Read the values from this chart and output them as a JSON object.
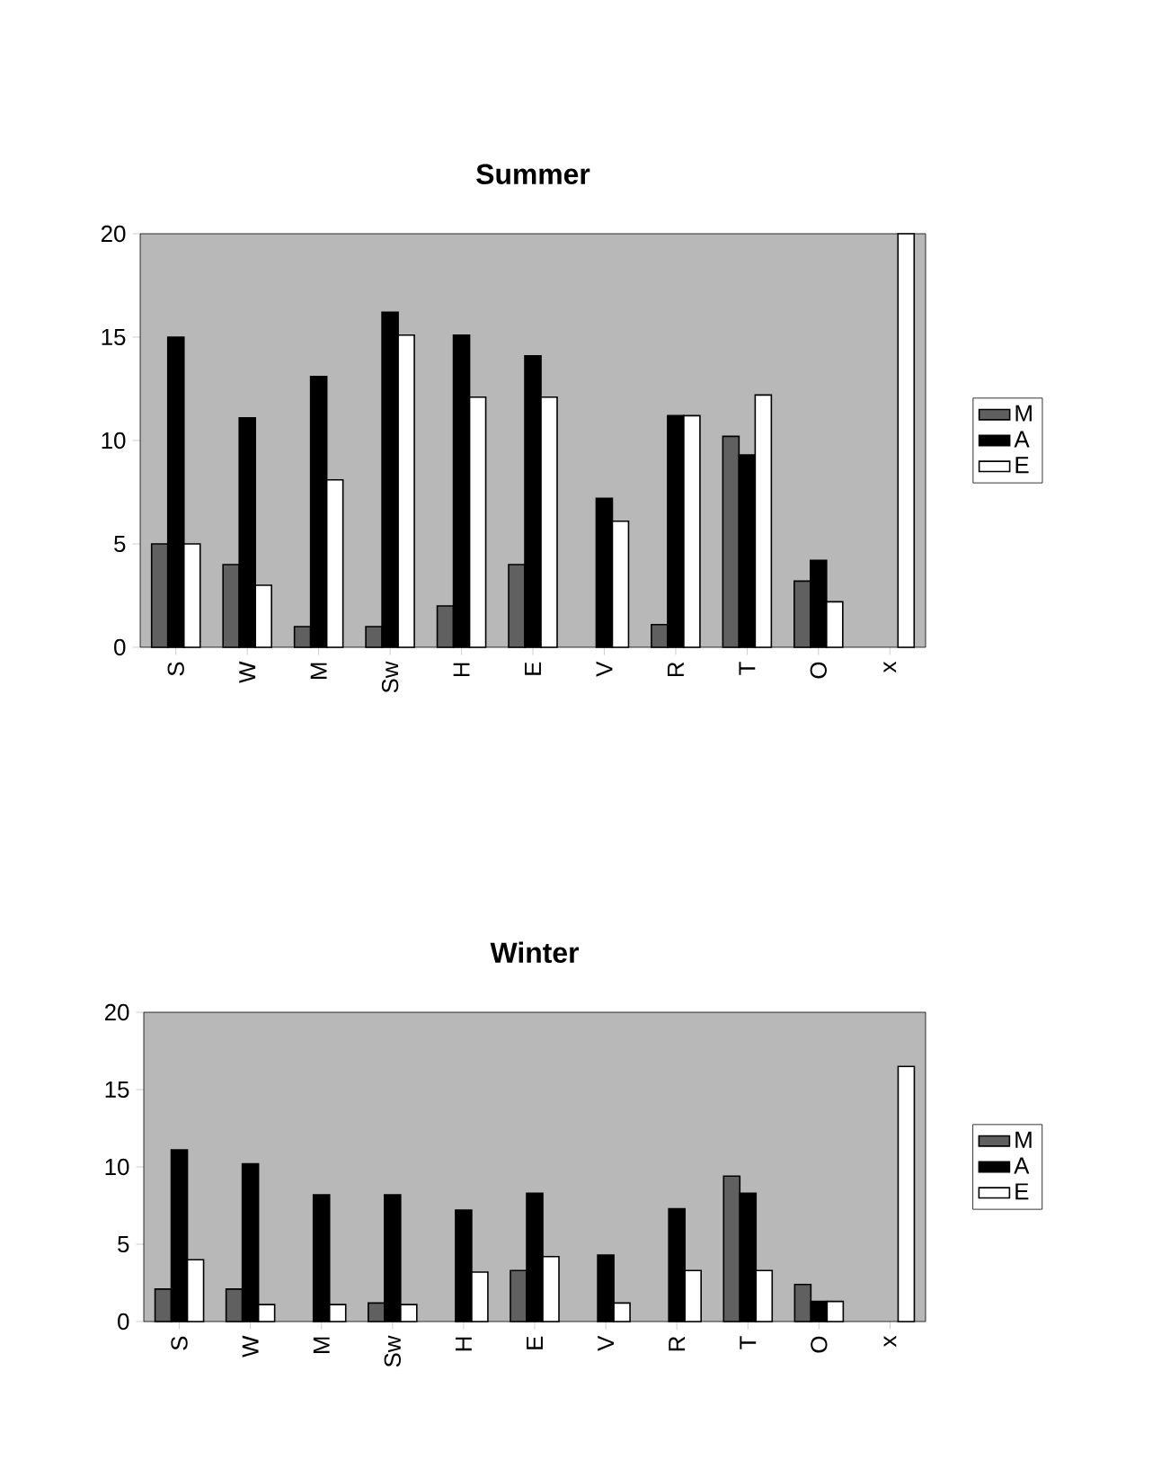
{
  "chart_data": [
    {
      "type": "bar",
      "title": "Summer",
      "categories": [
        "S",
        "W",
        "M",
        "Sw",
        "H",
        "E",
        "V",
        "R",
        "T",
        "O",
        "x"
      ],
      "ylim": [
        0,
        20
      ],
      "yticks": [
        0,
        5,
        10,
        15,
        20
      ],
      "legend": "right",
      "series": [
        {
          "name": "M",
          "color": "#606060",
          "values": [
            5,
            4,
            1,
            1,
            2,
            4,
            null,
            1.1,
            10.2,
            3.2,
            null
          ]
        },
        {
          "name": "A",
          "color": "#000000",
          "values": [
            15,
            11.1,
            13.1,
            16.2,
            15.1,
            14.1,
            7.2,
            11.2,
            9.3,
            4.2,
            null
          ]
        },
        {
          "name": "E",
          "color": "#ffffff",
          "values": [
            5,
            3,
            8.1,
            15.1,
            12.1,
            12.1,
            6.1,
            11.2,
            12.2,
            2.2,
            20
          ]
        }
      ]
    },
    {
      "type": "bar",
      "title": "Winter",
      "categories": [
        "S",
        "W",
        "M",
        "Sw",
        "H",
        "E",
        "V",
        "R",
        "T",
        "O",
        "x"
      ],
      "ylim": [
        0,
        20
      ],
      "yticks": [
        0,
        5,
        10,
        15,
        20
      ],
      "legend": "right",
      "series": [
        {
          "name": "M",
          "color": "#606060",
          "values": [
            2.1,
            2.1,
            null,
            1.2,
            null,
            3.3,
            null,
            null,
            9.4,
            2.4,
            null
          ]
        },
        {
          "name": "A",
          "color": "#000000",
          "values": [
            11.1,
            10.2,
            8.2,
            8.2,
            7.2,
            8.3,
            4.3,
            7.3,
            8.3,
            1.3,
            null
          ]
        },
        {
          "name": "E",
          "color": "#ffffff",
          "values": [
            4,
            1.1,
            1.1,
            1.1,
            3.2,
            4.2,
            1.2,
            3.3,
            3.3,
            1.3,
            16.5
          ]
        }
      ]
    }
  ]
}
